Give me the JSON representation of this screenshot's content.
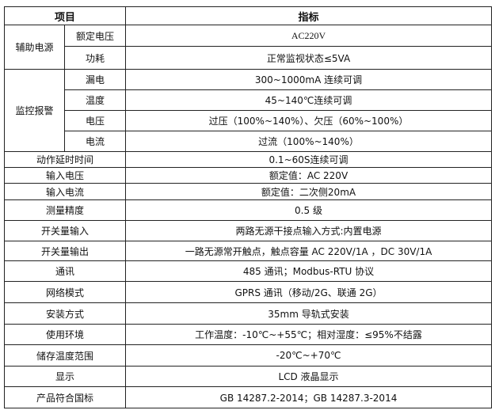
{
  "header": {
    "item": "项目",
    "spec": "指标"
  },
  "aux_power": {
    "group": "辅助电源",
    "rows": [
      {
        "label": "额定电压",
        "value": "AC220V"
      },
      {
        "label": "功耗",
        "value": "正常监视状态≤5VA"
      }
    ]
  },
  "monitor_alarm": {
    "group": "监控报警",
    "rows": [
      {
        "label": "漏电",
        "value": "300~1000mA 连续可调"
      },
      {
        "label": "温度",
        "value": "45~140℃连续可调"
      },
      {
        "label": "电压",
        "value": "过压（100%~140%）、欠压（60%~100%）"
      },
      {
        "label": "电流",
        "value": "过流（100%~140%）"
      }
    ]
  },
  "rows": [
    {
      "label": "动作延时时间",
      "value": "0.1~60S连续可调"
    },
    {
      "label": "输入电压",
      "value": "额定值：AC 220V"
    },
    {
      "label": "输入电流",
      "value": "额定值：二次侧20mA"
    },
    {
      "label": "测量精度",
      "value": "0.5 级"
    },
    {
      "label": "开关量输入",
      "value": "两路无源干接点输入方式:内置电源"
    },
    {
      "label": "开关量输出",
      "value": "一路无源常开触点，触点容量 AC 220V/1A ，DC 30V/1A"
    },
    {
      "label": "通讯",
      "value": "485 通讯；Modbus-RTU 协议"
    },
    {
      "label": "网络模式",
      "value": "GPRS 通讯（移动/2G、联通 2G）"
    },
    {
      "label": "安装方式",
      "value": "35mm 导轨式安装"
    },
    {
      "label": "使用环境",
      "value": "工作温度：-10℃~+55℃；相对湿度：≤95%不结露"
    },
    {
      "label": "储存温度范围",
      "value": "-20℃~+70℃"
    },
    {
      "label": "显示",
      "value": "LCD 液晶显示"
    },
    {
      "label": "产品符合国标",
      "value": "GB 14287.2-2014；GB 14287.3-2014"
    }
  ]
}
